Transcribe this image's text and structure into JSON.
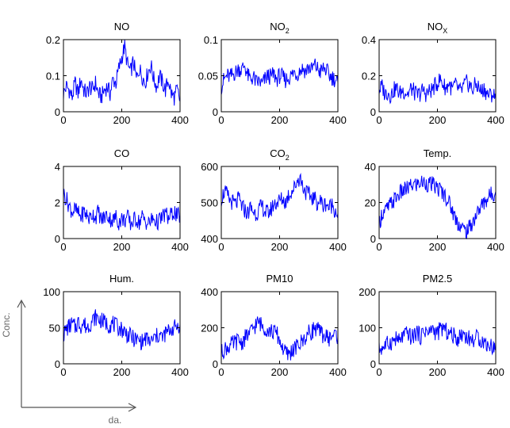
{
  "colors": {
    "line": "#0000ff",
    "axes": "#000000",
    "annotation": "#555555"
  },
  "annotation": {
    "ylabel": "Conc.",
    "xlabel": "da."
  },
  "chart_data": [
    {
      "type": "line",
      "title": "NO",
      "title_sub": "",
      "xlim": [
        0,
        400
      ],
      "ylim": [
        0,
        0.2
      ],
      "xticks": [
        "0",
        "200",
        "400"
      ],
      "yticks": [
        "0",
        "0.1",
        "0.2"
      ],
      "series": [
        {
          "x_step": 10,
          "values": [
            0.05,
            0.07,
            0.06,
            0.04,
            0.08,
            0.05,
            0.09,
            0.06,
            0.05,
            0.07,
            0.06,
            0.08,
            0.05,
            0.04,
            0.06,
            0.07,
            0.05,
            0.09,
            0.08,
            0.12,
            0.15,
            0.18,
            0.13,
            0.11,
            0.14,
            0.09,
            0.12,
            0.1,
            0.08,
            0.11,
            0.13,
            0.09,
            0.07,
            0.1,
            0.08,
            0.06,
            0.09,
            0.05,
            0.04,
            0.06,
            0.03
          ]
        }
      ]
    },
    {
      "type": "line",
      "title": "NO",
      "title_sub": "2",
      "xlim": [
        0,
        400
      ],
      "ylim": [
        0,
        0.1
      ],
      "xticks": [
        "0",
        "200",
        "400"
      ],
      "yticks": [
        "0",
        "0.05",
        "0.1"
      ],
      "series": [
        {
          "x_step": 10,
          "values": [
            0.035,
            0.045,
            0.05,
            0.048,
            0.052,
            0.055,
            0.06,
            0.058,
            0.065,
            0.05,
            0.045,
            0.048,
            0.04,
            0.042,
            0.038,
            0.045,
            0.05,
            0.048,
            0.052,
            0.045,
            0.05,
            0.048,
            0.044,
            0.047,
            0.05,
            0.055,
            0.052,
            0.058,
            0.06,
            0.056,
            0.062,
            0.058,
            0.065,
            0.06,
            0.055,
            0.06,
            0.058,
            0.05,
            0.048,
            0.045,
            0.04
          ]
        }
      ]
    },
    {
      "type": "line",
      "title": "NO",
      "title_sub": "X",
      "xlim": [
        0,
        400
      ],
      "ylim": [
        0,
        0.4
      ],
      "xticks": [
        "0",
        "200",
        "400"
      ],
      "yticks": [
        "0",
        "0.2",
        "0.4"
      ],
      "series": [
        {
          "x_step": 10,
          "values": [
            0.12,
            0.14,
            0.1,
            0.11,
            0.09,
            0.12,
            0.13,
            0.1,
            0.12,
            0.11,
            0.1,
            0.13,
            0.11,
            0.09,
            0.1,
            0.12,
            0.1,
            0.11,
            0.12,
            0.14,
            0.16,
            0.18,
            0.15,
            0.13,
            0.16,
            0.12,
            0.15,
            0.13,
            0.11,
            0.14,
            0.16,
            0.15,
            0.12,
            0.15,
            0.14,
            0.11,
            0.13,
            0.1,
            0.09,
            0.1,
            0.07
          ]
        }
      ]
    },
    {
      "type": "line",
      "title": "CO",
      "title_sub": "",
      "xlim": [
        0,
        400
      ],
      "ylim": [
        0,
        4
      ],
      "xticks": [
        "0",
        "200",
        "400"
      ],
      "yticks": [
        "0",
        "2",
        "4"
      ],
      "series": [
        {
          "x_step": 10,
          "values": [
            2.5,
            2.2,
            1.8,
            1.5,
            1.6,
            1.4,
            1.2,
            1.5,
            1.3,
            1.1,
            1.4,
            1.2,
            1.5,
            1.0,
            1.2,
            1.3,
            1.1,
            1.0,
            1.2,
            0.9,
            1.1,
            1.0,
            1.2,
            0.8,
            1.0,
            1.1,
            0.9,
            1.2,
            1.0,
            0.8,
            1.0,
            1.1,
            0.9,
            1.0,
            1.2,
            1.4,
            1.1,
            1.3,
            1.5,
            1.2,
            1.3
          ]
        }
      ]
    },
    {
      "type": "line",
      "title": "CO",
      "title_sub": "2",
      "xlim": [
        0,
        400
      ],
      "ylim": [
        400,
        600
      ],
      "xticks": [
        "0",
        "200",
        "400"
      ],
      "yticks": [
        "400",
        "500",
        "600"
      ],
      "series": [
        {
          "x_step": 10,
          "values": [
            510,
            530,
            520,
            505,
            500,
            495,
            510,
            490,
            480,
            470,
            485,
            475,
            470,
            480,
            490,
            475,
            470,
            480,
            495,
            500,
            505,
            510,
            500,
            520,
            530,
            540,
            560,
            570,
            545,
            530,
            520,
            515,
            510,
            500,
            505,
            490,
            500,
            485,
            495,
            480,
            470
          ]
        }
      ]
    },
    {
      "type": "line",
      "title": "Temp.",
      "title_sub": "",
      "xlim": [
        0,
        400
      ],
      "ylim": [
        0,
        40
      ],
      "xticks": [
        "0",
        "200",
        "400"
      ],
      "yticks": [
        "0",
        "20",
        "40"
      ],
      "series": [
        {
          "x_step": 10,
          "values": [
            8,
            14,
            15,
            17,
            19,
            21,
            23,
            25,
            26,
            27,
            28,
            29,
            30,
            30,
            31,
            31,
            31,
            30,
            30,
            29,
            28,
            27,
            25,
            23,
            20,
            16,
            12,
            9,
            7,
            5,
            4,
            6,
            9,
            12,
            15,
            18,
            20,
            22,
            24,
            25,
            26
          ]
        }
      ]
    },
    {
      "type": "line",
      "title": "Hum.",
      "title_sub": "",
      "xlim": [
        0,
        400
      ],
      "ylim": [
        0,
        100
      ],
      "xticks": [
        "0",
        "200",
        "400"
      ],
      "yticks": [
        "0",
        "50",
        "100"
      ],
      "series": [
        {
          "x_step": 10,
          "values": [
            40,
            48,
            52,
            55,
            50,
            58,
            53,
            56,
            50,
            55,
            60,
            65,
            62,
            60,
            58,
            55,
            54,
            56,
            52,
            50,
            48,
            45,
            40,
            38,
            35,
            33,
            32,
            30,
            35,
            33,
            30,
            35,
            38,
            40,
            36,
            42,
            45,
            48,
            50,
            52,
            55
          ]
        }
      ]
    },
    {
      "type": "line",
      "title": "PM10",
      "title_sub": "",
      "xlim": [
        0,
        400
      ],
      "ylim": [
        0,
        400
      ],
      "xticks": [
        "0",
        "200",
        "400"
      ],
      "yticks": [
        "0",
        "200",
        "400"
      ],
      "series": [
        {
          "x_step": 10,
          "values": [
            60,
            80,
            90,
            100,
            110,
            120,
            130,
            115,
            140,
            160,
            170,
            200,
            220,
            230,
            210,
            200,
            190,
            180,
            175,
            170,
            130,
            90,
            60,
            50,
            70,
            80,
            95,
            110,
            130,
            150,
            170,
            180,
            200,
            190,
            170,
            160,
            150,
            140,
            155,
            165,
            150
          ]
        }
      ]
    },
    {
      "type": "line",
      "title": "PM2.5",
      "title_sub": "",
      "xlim": [
        0,
        400
      ],
      "ylim": [
        0,
        200
      ],
      "xticks": [
        "0",
        "200",
        "400"
      ],
      "yticks": [
        "0",
        "100",
        "200"
      ],
      "series": [
        {
          "x_step": 10,
          "values": [
            40,
            45,
            50,
            55,
            60,
            65,
            70,
            60,
            75,
            80,
            85,
            70,
            80,
            90,
            75,
            85,
            95,
            80,
            100,
            90,
            85,
            95,
            100,
            90,
            85,
            80,
            75,
            70,
            80,
            85,
            75,
            70,
            65,
            70,
            75,
            65,
            60,
            55,
            50,
            48,
            45
          ]
        }
      ]
    }
  ]
}
